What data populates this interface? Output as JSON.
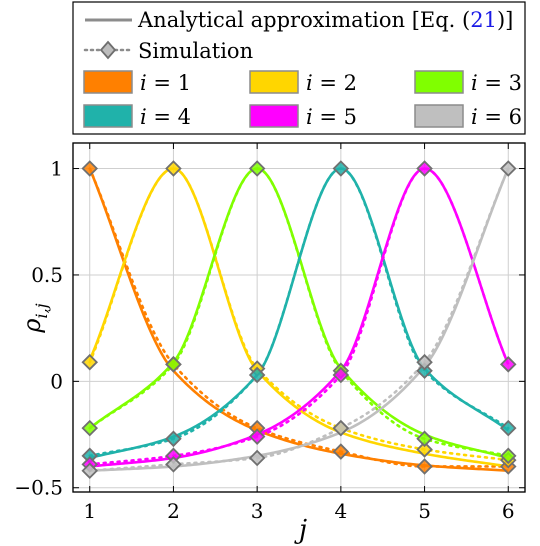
{
  "chart_data": {
    "type": "line",
    "title": "",
    "xlabel": "j",
    "ylabel": "ρ_{i,j}",
    "xlim": [
      0.8,
      6.2
    ],
    "ylim": [
      -0.52,
      1.12
    ],
    "xticks": [
      1,
      2,
      3,
      4,
      5,
      6
    ],
    "yticks": [
      -0.5,
      0,
      0.5,
      1
    ],
    "ytick_labels": [
      "−0.5",
      "0",
      "0.5",
      "1"
    ],
    "grid": true,
    "legend_position": "top (above plot)",
    "legend": {
      "analytical_label": "Analytical approximation [Eq. (",
      "eq_ref": "21",
      "analytical_suffix": ")]",
      "simulation_label": "Simulation",
      "i_prefix": "i",
      "i_equals": "= "
    },
    "series": [
      {
        "name": "i = 1",
        "i": 1,
        "color": "#FF8000",
        "analytical": [
          1.0,
          0.05,
          -0.23,
          -0.34,
          -0.395,
          -0.42
        ],
        "simulation": [
          1.0,
          0.08,
          -0.22,
          -0.33,
          -0.4,
          -0.4
        ]
      },
      {
        "name": "i = 2",
        "i": 2,
        "color": "#FFD600",
        "analytical": [
          0.1,
          1.0,
          0.05,
          -0.24,
          -0.34,
          -0.4
        ],
        "simulation": [
          0.09,
          1.0,
          0.06,
          -0.22,
          -0.32,
          -0.37
        ]
      },
      {
        "name": "i = 3",
        "i": 3,
        "color": "#80FF00",
        "analytical": [
          -0.22,
          0.09,
          1.0,
          0.06,
          -0.25,
          -0.36
        ],
        "simulation": [
          -0.22,
          0.08,
          1.0,
          0.05,
          -0.27,
          -0.35
        ]
      },
      {
        "name": "i = 4",
        "i": 4,
        "color": "#20B2AA",
        "analytical": [
          -0.36,
          -0.26,
          0.03,
          1.0,
          0.06,
          -0.23
        ],
        "simulation": [
          -0.35,
          -0.27,
          0.03,
          1.0,
          0.05,
          -0.22
        ]
      },
      {
        "name": "i = 5",
        "i": 5,
        "color": "#FF00FF",
        "analytical": [
          -0.4,
          -0.36,
          -0.25,
          0.05,
          1.0,
          0.08
        ],
        "simulation": [
          -0.39,
          -0.35,
          -0.26,
          0.03,
          1.0,
          0.08
        ]
      },
      {
        "name": "i = 6",
        "i": 6,
        "color": "#BFBFBF",
        "analytical": [
          -0.42,
          -0.4,
          -0.35,
          -0.24,
          0.07,
          1.0
        ],
        "simulation": [
          -0.42,
          -0.39,
          -0.36,
          -0.22,
          0.09,
          1.0
        ]
      }
    ]
  }
}
